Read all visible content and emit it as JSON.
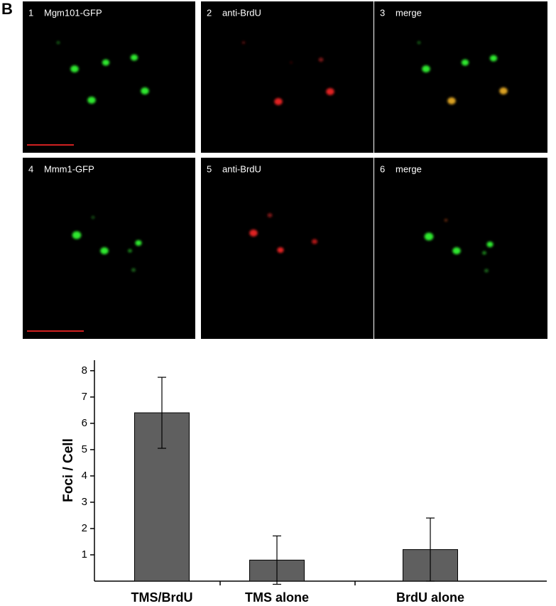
{
  "figure_label": "B",
  "panels": [
    {
      "number": "1",
      "label": "Mgm101-GFP"
    },
    {
      "number": "2",
      "label": "anti-BrdU"
    },
    {
      "number": "3",
      "label": "merge"
    },
    {
      "number": "4",
      "label": "Mmm1-GFP"
    },
    {
      "number": "5",
      "label": "anti-BrdU"
    },
    {
      "number": "6",
      "label": "merge"
    }
  ],
  "chart_data": {
    "type": "bar",
    "y_label": "Foci / Cell",
    "categories": [
      "TMS/BrdU",
      "TMS alone",
      "BrdU alone"
    ],
    "values": [
      6.4,
      0.8,
      1.2
    ],
    "errors": [
      1.35,
      0.92,
      1.2
    ],
    "color": "#5f5f5f",
    "ylim": [
      0,
      8.4
    ],
    "yticks": [
      1,
      2,
      3,
      4,
      5,
      6,
      7,
      8
    ]
  }
}
